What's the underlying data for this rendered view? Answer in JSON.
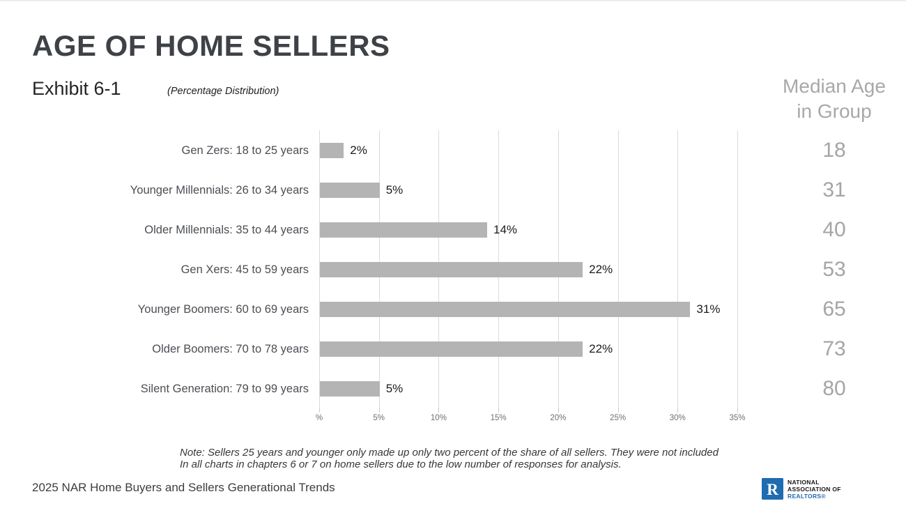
{
  "header": {
    "title": "AGE OF HOME SELLERS",
    "exhibit": "Exhibit 6-1",
    "subtitle": "(Percentage Distribution)"
  },
  "median_column": {
    "header_line1": "Median Age",
    "header_line2": "in Group"
  },
  "chart_data": {
    "type": "bar",
    "orientation": "horizontal",
    "title": "AGE OF HOME SELLERS",
    "subtitle": "(Percentage Distribution)",
    "categories": [
      "Gen Zers: 18 to 25 years",
      "Younger Millennials: 26 to 34 years",
      "Older Millennials: 35 to 44 years",
      "Gen Xers: 45 to 59 years",
      "Younger Boomers: 60 to 69 years",
      "Older Boomers: 70 to 78 years",
      "Silent Generation: 79 to 99 years"
    ],
    "values": [
      2,
      5,
      14,
      22,
      31,
      22,
      5
    ],
    "value_labels": [
      "2%",
      "5%",
      "14%",
      "22%",
      "31%",
      "22%",
      "5%"
    ],
    "median_ages": [
      18,
      31,
      40,
      53,
      65,
      73,
      80
    ],
    "x_tick_values": [
      0,
      5,
      10,
      15,
      20,
      25,
      30,
      35
    ],
    "x_tick_labels": [
      "%",
      "5%",
      "10%",
      "15%",
      "20%",
      "25%",
      "30%",
      "35%"
    ],
    "xlim": [
      0,
      35
    ],
    "grid": true,
    "legend": false,
    "bar_color": "#b4b4b4",
    "gridline_color": "#dadada"
  },
  "note": {
    "line1": "Note: Sellers 25 years and younger only made up only two percent of the share of all sellers. They were not included",
    "line2": "In all charts in chapters 6 or 7 on home sellers due to the low number of responses for analysis."
  },
  "footer": {
    "source": "2025 NAR Home Buyers and Sellers Generational Trends",
    "logo": {
      "line1": "NATIONAL",
      "line2": "ASSOCIATION OF",
      "line3": "REALTORS®",
      "brand_color": "#1f6cb0"
    }
  }
}
